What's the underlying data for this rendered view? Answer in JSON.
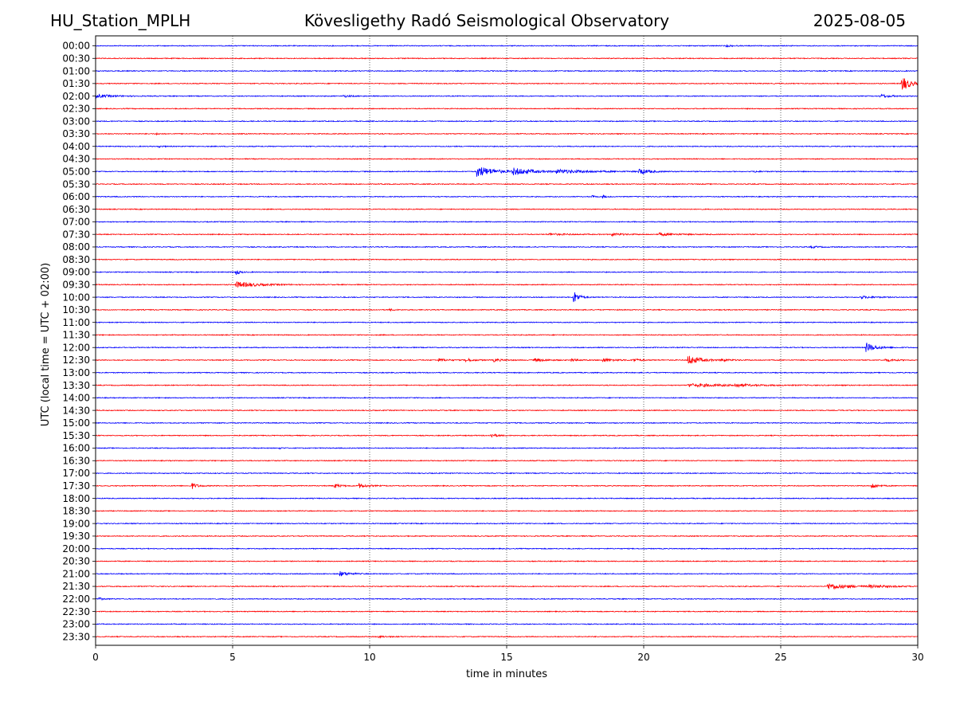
{
  "header": {
    "station": "HU_Station_MPLH",
    "observatory": "Kövesligethy Radó Seismological Observatory",
    "date": "2025-08-05"
  },
  "chart_data": {
    "type": "line",
    "xlabel": "time in minutes",
    "ylabel": "UTC (local time = UTC + 02:00)",
    "xlim": [
      0,
      30
    ],
    "x_ticks": [
      "0",
      "5",
      "10",
      "15",
      "20",
      "25",
      "30"
    ],
    "x_tick_values": [
      0,
      5,
      10,
      15,
      20,
      25,
      30
    ],
    "row_labels": [
      "00:00",
      "00:30",
      "01:00",
      "01:30",
      "02:00",
      "02:30",
      "03:00",
      "03:30",
      "04:00",
      "04:30",
      "05:00",
      "05:30",
      "06:00",
      "06:30",
      "07:00",
      "07:30",
      "08:00",
      "08:30",
      "09:00",
      "09:30",
      "10:00",
      "10:30",
      "11:00",
      "11:30",
      "12:00",
      "12:30",
      "13:00",
      "13:30",
      "14:00",
      "14:30",
      "15:00",
      "15:30",
      "16:00",
      "16:30",
      "17:00",
      "17:30",
      "18:00",
      "18:30",
      "19:00",
      "19:30",
      "20:00",
      "20:30",
      "21:00",
      "21:30",
      "22:00",
      "22:30",
      "23:00",
      "23:30"
    ],
    "trace_colors": [
      "#0000ff",
      "#ff0000"
    ],
    "grid": "vertical dotted at x ticks",
    "events": [
      {
        "row": 0,
        "t": 23.0,
        "amp": 0.3,
        "dur": 0.4
      },
      {
        "row": 3,
        "t": 29.4,
        "amp": 2.4,
        "dur": 0.6
      },
      {
        "row": 4,
        "t": 0.0,
        "amp": 0.5,
        "dur": 1.2
      },
      {
        "row": 4,
        "t": 9.0,
        "amp": 0.35,
        "dur": 0.5
      },
      {
        "row": 4,
        "t": 28.6,
        "amp": 0.5,
        "dur": 0.8
      },
      {
        "row": 7,
        "t": 2.2,
        "amp": 0.2,
        "dur": 0.3
      },
      {
        "row": 8,
        "t": 2.3,
        "amp": 0.2,
        "dur": 0.4
      },
      {
        "row": 10,
        "t": 13.9,
        "amp": 1.6,
        "dur": 1.3
      },
      {
        "row": 10,
        "t": 15.2,
        "amp": 0.9,
        "dur": 1.6
      },
      {
        "row": 10,
        "t": 16.8,
        "amp": 0.45,
        "dur": 2.8
      },
      {
        "row": 10,
        "t": 19.8,
        "amp": 0.9,
        "dur": 0.7
      },
      {
        "row": 10,
        "t": 24.0,
        "amp": 0.25,
        "dur": 0.4
      },
      {
        "row": 12,
        "t": 18.1,
        "amp": 0.45,
        "dur": 0.2
      },
      {
        "row": 12,
        "t": 18.5,
        "amp": 0.4,
        "dur": 0.2
      },
      {
        "row": 15,
        "t": 16.5,
        "amp": 0.25,
        "dur": 1.5
      },
      {
        "row": 15,
        "t": 18.8,
        "amp": 0.35,
        "dur": 1.0
      },
      {
        "row": 15,
        "t": 20.5,
        "amp": 0.35,
        "dur": 1.5
      },
      {
        "row": 16,
        "t": 26.1,
        "amp": 0.3,
        "dur": 0.5
      },
      {
        "row": 18,
        "t": 5.1,
        "amp": 1.0,
        "dur": 0.25
      },
      {
        "row": 19,
        "t": 5.1,
        "amp": 0.8,
        "dur": 1.6
      },
      {
        "row": 20,
        "t": 17.4,
        "amp": 2.3,
        "dur": 0.4
      },
      {
        "row": 20,
        "t": 27.9,
        "amp": 0.35,
        "dur": 0.9
      },
      {
        "row": 21,
        "t": 10.7,
        "amp": 0.25,
        "dur": 0.4
      },
      {
        "row": 24,
        "t": 28.1,
        "amp": 1.4,
        "dur": 0.7
      },
      {
        "row": 25,
        "t": 12.5,
        "amp": 0.45,
        "dur": 0.6
      },
      {
        "row": 25,
        "t": 13.5,
        "amp": 0.45,
        "dur": 0.6
      },
      {
        "row": 25,
        "t": 14.5,
        "amp": 0.45,
        "dur": 0.6
      },
      {
        "row": 25,
        "t": 16.0,
        "amp": 0.5,
        "dur": 0.8
      },
      {
        "row": 25,
        "t": 17.3,
        "amp": 0.4,
        "dur": 0.6
      },
      {
        "row": 25,
        "t": 18.5,
        "amp": 0.5,
        "dur": 0.8
      },
      {
        "row": 25,
        "t": 19.6,
        "amp": 0.4,
        "dur": 0.6
      },
      {
        "row": 25,
        "t": 21.6,
        "amp": 1.4,
        "dur": 0.9
      },
      {
        "row": 25,
        "t": 22.8,
        "amp": 0.35,
        "dur": 0.7
      },
      {
        "row": 25,
        "t": 28.8,
        "amp": 0.35,
        "dur": 0.8
      },
      {
        "row": 27,
        "t": 21.6,
        "amp": 0.4,
        "dur": 3.8
      },
      {
        "row": 27,
        "t": 23.3,
        "amp": 0.4,
        "dur": 0.8
      },
      {
        "row": 31,
        "t": 14.4,
        "amp": 0.6,
        "dur": 0.5
      },
      {
        "row": 32,
        "t": 6.7,
        "amp": 0.2,
        "dur": 0.3
      },
      {
        "row": 35,
        "t": 3.5,
        "amp": 0.9,
        "dur": 0.4
      },
      {
        "row": 35,
        "t": 8.7,
        "amp": 0.6,
        "dur": 0.5
      },
      {
        "row": 35,
        "t": 9.6,
        "amp": 0.6,
        "dur": 0.6
      },
      {
        "row": 35,
        "t": 28.3,
        "amp": 0.9,
        "dur": 0.4
      },
      {
        "row": 42,
        "t": 8.9,
        "amp": 0.7,
        "dur": 0.7
      },
      {
        "row": 43,
        "t": 26.7,
        "amp": 0.9,
        "dur": 1.5
      },
      {
        "row": 43,
        "t": 28.2,
        "amp": 0.3,
        "dur": 1.8
      },
      {
        "row": 44,
        "t": 0.1,
        "amp": 0.3,
        "dur": 0.4
      },
      {
        "row": 47,
        "t": 10.3,
        "amp": 0.25,
        "dur": 0.6
      }
    ]
  }
}
